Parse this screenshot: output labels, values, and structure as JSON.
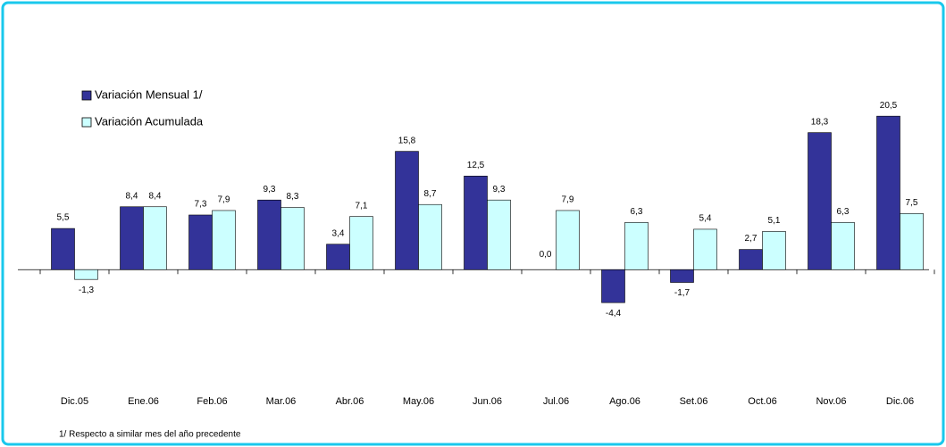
{
  "chart_data": {
    "type": "bar",
    "categories": [
      "Dic.05",
      "Ene.06",
      "Feb.06",
      "Mar.06",
      "Abr.06",
      "May.06",
      "Jun.06",
      "Jul.06",
      "Ago.06",
      "Set.06",
      "Oct.06",
      "Nov.06",
      "Dic.06"
    ],
    "series": [
      {
        "name": "Variación Mensual 1/",
        "color": "#333399",
        "values": [
          5.5,
          8.4,
          7.3,
          9.3,
          3.4,
          15.8,
          12.5,
          0.0,
          -4.4,
          -1.7,
          2.7,
          18.3,
          20.5
        ],
        "value_labels": [
          "5,5",
          "8,4",
          "7,3",
          "9,3",
          "3,4",
          "15,8",
          "12,5",
          "0,0",
          "-4,4",
          "-1,7",
          "2,7",
          "18,3",
          "20,5"
        ]
      },
      {
        "name": "Variación Acumulada",
        "color": "#ccffff",
        "values": [
          -1.3,
          8.4,
          7.9,
          8.3,
          7.1,
          8.7,
          9.3,
          7.9,
          6.3,
          5.4,
          5.1,
          6.3,
          7.5
        ],
        "value_labels": [
          "-1,3",
          "8,4",
          "7,9",
          "8,3",
          "7,1",
          "8,7",
          "9,3",
          "7,9",
          "6,3",
          "5,4",
          "5,1",
          "6,3",
          "7,5"
        ]
      }
    ],
    "ylim": [
      -12,
      26
    ],
    "legend": "upper left",
    "footnote": "1/ Respecto a similar mes del año precedente"
  }
}
